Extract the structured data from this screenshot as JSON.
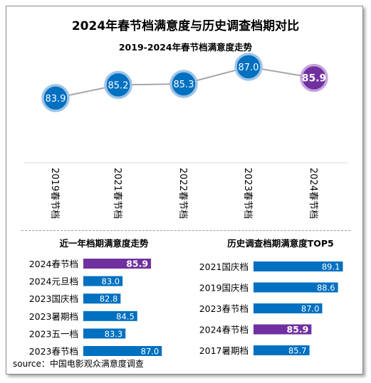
{
  "title": "2024年春节档满意度与历史调查档期对比",
  "source": "source：中国电影观众满意度调查",
  "colors": {
    "blue": "#0070c0",
    "purple": "#7030a0",
    "line": "#a6a6a6",
    "ring_blue": "#9dc3e6",
    "ring_purple": "#c5a3dc"
  },
  "chart_data": [
    {
      "type": "line",
      "title": "2019-2024年春节档满意度走势",
      "categories": [
        "2019春节档",
        "2021春节档",
        "2022春节档",
        "2023春节档",
        "2024春节档"
      ],
      "values": [
        83.9,
        85.2,
        85.3,
        87.0,
        85.9
      ],
      "labels": [
        "83.9",
        "85.2",
        "85.3",
        "87.0",
        "85.9"
      ],
      "highlight_index": 4,
      "ylim": [
        81,
        89
      ]
    },
    {
      "type": "bar",
      "title": "近一年档期满意度走势",
      "orientation": "horizontal",
      "categories": [
        "2024春节档",
        "2024元旦档",
        "2023国庆档",
        "2023暑期档",
        "2023五一档",
        "2023春节档"
      ],
      "values": [
        85.9,
        83.0,
        82.8,
        84.5,
        83.3,
        87.0
      ],
      "labels": [
        "85.9",
        "83.0",
        "82.8",
        "84.5",
        "83.3",
        "87.0"
      ],
      "highlight_index": 0,
      "xlim": [
        79,
        88
      ]
    },
    {
      "type": "bar",
      "title": "历史调查档期满意度TOP5",
      "orientation": "horizontal",
      "categories": [
        "2021国庆档",
        "2019国庆档",
        "2023春节档",
        "2024春节档",
        "2017暑期档"
      ],
      "values": [
        89.1,
        88.6,
        87.0,
        85.9,
        85.7
      ],
      "labels": [
        "89.1",
        "88.6",
        "87.0",
        "85.9",
        "85.7"
      ],
      "highlight_index": 3,
      "xlim": [
        80,
        89.5
      ]
    }
  ]
}
